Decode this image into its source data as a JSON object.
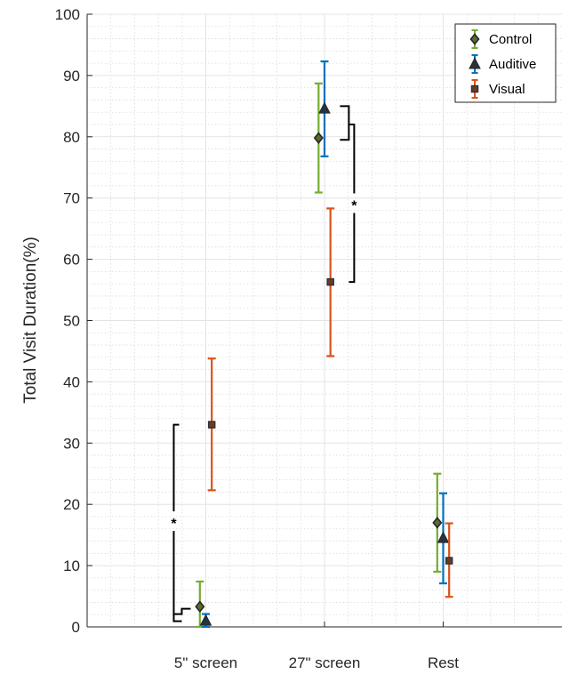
{
  "chart_data": {
    "type": "scatter",
    "ylabel": "Total Visit Duration(%)",
    "xlabel": "",
    "categories": [
      "5\" screen",
      "27\" screen",
      "Rest"
    ],
    "ylim": [
      0,
      100
    ],
    "yticks": [
      0,
      10,
      20,
      30,
      40,
      50,
      60,
      70,
      80,
      90,
      100
    ],
    "grid": true,
    "minor_grid": true,
    "legend_position": "top-right",
    "series": [
      {
        "name": "Control",
        "color": "#77ac30",
        "marker": "diamond",
        "values": [
          3.3,
          79.8,
          17.0
        ],
        "lower": [
          0.0,
          70.9,
          9.0
        ],
        "upper": [
          7.4,
          88.7,
          25.0
        ]
      },
      {
        "name": "Auditive",
        "color": "#0072bd",
        "marker": "triangle",
        "values": [
          1.0,
          84.6,
          14.5
        ],
        "lower": [
          0.0,
          76.8,
          7.1
        ],
        "upper": [
          2.1,
          92.3,
          21.8
        ]
      },
      {
        "name": "Visual",
        "color": "#d95319",
        "marker": "square",
        "values": [
          33.0,
          56.3,
          10.8
        ],
        "lower": [
          22.3,
          44.2,
          4.9
        ],
        "upper": [
          43.8,
          68.3,
          16.9
        ]
      }
    ],
    "annotations": [
      {
        "text": "*",
        "category_index": 0,
        "from_y": 1.5,
        "to_y": 33.0,
        "side": "left"
      },
      {
        "text": "*",
        "category_index": 1,
        "from_y": 56.3,
        "to_y": 82.0,
        "side": "right"
      }
    ]
  }
}
